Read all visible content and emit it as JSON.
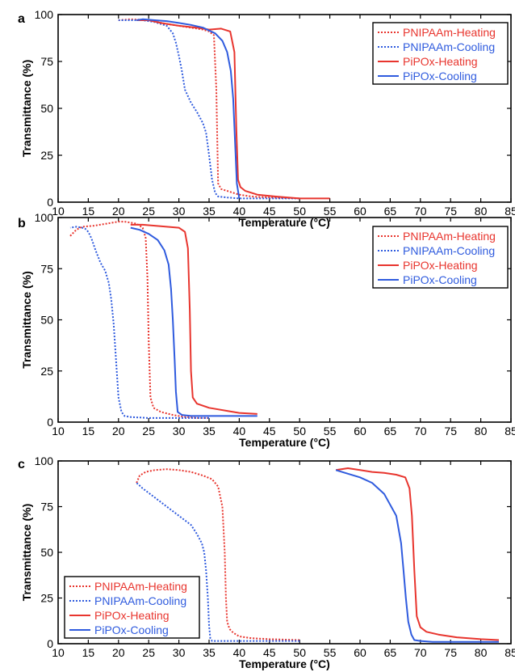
{
  "panels": [
    {
      "label": "a",
      "chart_data": {
        "type": "line",
        "xlabel": "Temperature (°C)",
        "ylabel": "Transmittance (%)",
        "xlim": [
          10,
          85
        ],
        "ylim": [
          0,
          100
        ],
        "xticks": [
          10,
          15,
          20,
          25,
          30,
          35,
          40,
          45,
          50,
          55,
          60,
          65,
          70,
          75,
          80,
          85
        ],
        "yticks": [
          0,
          25,
          50,
          75,
          100
        ],
        "grid": false,
        "legend_position": "top-right",
        "series": [
          {
            "name": "PNIPAAm-Heating",
            "color": "#e8352e",
            "dash": "dotted",
            "x": [
              20,
              22,
              25,
              28,
              30,
              32,
              34,
              35,
              35.8,
              36.2,
              36.5,
              37,
              38,
              40,
              42,
              45,
              50
            ],
            "y": [
              97,
              97.5,
              97,
              95,
              94,
              93,
              92,
              91,
              89,
              60,
              10,
              7,
              6,
              4,
              3,
              2.5,
              2
            ]
          },
          {
            "name": "PNIPAAm-Cooling",
            "color": "#2f5bde",
            "dash": "dotted",
            "x": [
              50,
              45,
              40,
              38,
              36.5,
              36,
              35.5,
              35,
              34.5,
              34,
              33.5,
              33,
              32,
              31,
              30.5,
              30,
              29.5,
              29,
              28,
              26,
              24,
              22,
              20
            ],
            "y": [
              2,
              2,
              2,
              2.5,
              3,
              5,
              12,
              25,
              37,
              42,
              45,
              48,
              53,
              60,
              70,
              78,
              85,
              90,
              94,
              96,
              97,
              97,
              97
            ]
          },
          {
            "name": "PiPOx-Heating",
            "color": "#e8352e",
            "dash": "solid",
            "x": [
              23,
              25,
              27,
              30,
              33,
              35,
              37,
              38.5,
              39.2,
              39.5,
              39.8,
              40.2,
              41,
              43,
              46,
              50,
              55
            ],
            "y": [
              97,
              97,
              95.5,
              94,
              93,
              92,
              92.5,
              91,
              80,
              40,
              12,
              8,
              6,
              4,
              3,
              2,
              2
            ]
          },
          {
            "name": "PiPOx-Cooling",
            "color": "#2f5bde",
            "dash": "solid",
            "x": [
              40,
              39.6,
              39.4,
              39.2,
              39,
              38.6,
              38,
              37.2,
              36,
              34,
              32,
              30,
              28,
              26,
              24,
              23
            ],
            "y": [
              2,
              10,
              25,
              40,
              55,
              70,
              80,
              86,
              90,
              93,
              94.5,
              95.5,
              96.5,
              97,
              97.5,
              97
            ]
          }
        ]
      }
    },
    {
      "label": "b",
      "chart_data": {
        "type": "line",
        "xlabel": "Temperature (°C)",
        "ylabel": "Transmittance (%)",
        "xlim": [
          10,
          85
        ],
        "ylim": [
          0,
          100
        ],
        "xticks": [
          10,
          15,
          20,
          25,
          30,
          35,
          40,
          45,
          50,
          55,
          60,
          65,
          70,
          75,
          80,
          85
        ],
        "yticks": [
          0,
          25,
          50,
          75,
          100
        ],
        "grid": false,
        "legend_position": "top-right",
        "series": [
          {
            "name": "PNIPAAm-Heating",
            "color": "#e8352e",
            "dash": "dotted",
            "x": [
              12,
              13,
              14,
              16,
              18,
              20,
              21,
              22,
              23,
              24,
              24.5,
              24.8,
              25,
              25.3,
              25.8,
              27,
              29,
              31,
              33,
              35
            ],
            "y": [
              91,
              94,
              95.5,
              96,
              97,
              98,
              98,
              97.5,
              97,
              95,
              90,
              70,
              40,
              12,
              7,
              5,
              3.5,
              2.5,
              2,
              2
            ]
          },
          {
            "name": "PNIPAAm-Cooling",
            "color": "#2f5bde",
            "dash": "dotted",
            "x": [
              35,
              30,
              25,
              22,
              21,
              20.5,
              20,
              19.6,
              19.2,
              18.8,
              18.4,
              17.8,
              17,
              16.2,
              15.5,
              15,
              14.5,
              14,
              13,
              12
            ],
            "y": [
              2,
              2,
              2,
              2.5,
              3,
              5,
              12,
              30,
              48,
              60,
              68,
              74,
              78,
              84,
              90,
              93,
              94.5,
              95,
              95.5,
              95
            ]
          },
          {
            "name": "PiPOx-Heating",
            "color": "#e8352e",
            "dash": "solid",
            "x": [
              22,
              24,
              26,
              28,
              30,
              31,
              31.5,
              31.8,
              32,
              32.3,
              33,
              35,
              38,
              40,
              43
            ],
            "y": [
              96.5,
              96.5,
              96,
              95.5,
              95,
              93,
              85,
              55,
              25,
              12,
              9,
              7,
              5.5,
              4.5,
              4
            ]
          },
          {
            "name": "PiPOx-Cooling",
            "color": "#2f5bde",
            "dash": "solid",
            "x": [
              43,
              40,
              35,
              32,
              30.5,
              29.8,
              29.5,
              29.3,
              29,
              28.7,
              28.3,
              27.6,
              26.5,
              25,
              23.5,
              22
            ],
            "y": [
              3,
              3,
              3,
              3,
              3.5,
              5,
              15,
              30,
              50,
              65,
              77,
              84,
              89,
              92,
              94,
              95
            ]
          }
        ]
      }
    },
    {
      "label": "c",
      "chart_data": {
        "type": "line",
        "xlabel": "Temperature (°C)",
        "ylabel": "Transmittance (%)",
        "xlim": [
          10,
          85
        ],
        "ylim": [
          0,
          100
        ],
        "xticks": [
          10,
          15,
          20,
          25,
          30,
          35,
          40,
          45,
          50,
          55,
          60,
          65,
          70,
          75,
          80,
          85
        ],
        "yticks": [
          0,
          25,
          50,
          75,
          100
        ],
        "grid": false,
        "legend_position": "bottom-left",
        "series": [
          {
            "name": "PNIPAAm-Heating",
            "color": "#e8352e",
            "dash": "dotted",
            "x": [
              23,
              23.5,
              24.5,
              26,
              28,
              30,
              32,
              34,
              35.5,
              36.5,
              37.2,
              37.6,
              37.8,
              38,
              38.4,
              39,
              40,
              42,
              45,
              50
            ],
            "y": [
              88,
              92,
              94,
              95,
              95.5,
              95,
              94,
              92,
              90,
              86,
              75,
              50,
              25,
              12,
              8,
              6,
              4,
              3,
              2.5,
              2
            ]
          },
          {
            "name": "PNIPAAm-Cooling",
            "color": "#2f5bde",
            "dash": "dotted",
            "x": [
              50,
              45,
              40,
              37,
              35.5,
              35.2,
              35,
              34.8,
              34.5,
              34.2,
              33.8,
              33,
              32,
              30,
              28,
              26,
              24,
              23
            ],
            "y": [
              1.5,
              1.5,
              1.5,
              1.5,
              1.5,
              3,
              10,
              25,
              40,
              50,
              55,
              60,
              65,
              70,
              75,
              80,
              85,
              88
            ]
          },
          {
            "name": "PiPOx-Heating",
            "color": "#e8352e",
            "dash": "solid",
            "x": [
              56,
              58,
              60,
              62,
              64,
              66,
              67.5,
              68.2,
              68.6,
              69,
              69.4,
              70,
              71,
              73,
              76,
              80,
              83
            ],
            "y": [
              95,
              96,
              95,
              94,
              93.5,
              92.5,
              91,
              85,
              70,
              40,
              15,
              9,
              6.5,
              5,
              3.5,
              2.5,
              2
            ]
          },
          {
            "name": "PiPOx-Cooling",
            "color": "#2f5bde",
            "dash": "solid",
            "x": [
              83,
              80,
              75,
              72,
              70,
              69,
              68.5,
              68,
              67.6,
              67.2,
              66.8,
              66,
              64,
              62,
              60,
              58,
              56
            ],
            "y": [
              1,
              1,
              1,
              1,
              1.5,
              2,
              5,
              12,
              25,
              40,
              55,
              70,
              82,
              88,
              91,
              93,
              95
            ]
          }
        ]
      }
    }
  ]
}
